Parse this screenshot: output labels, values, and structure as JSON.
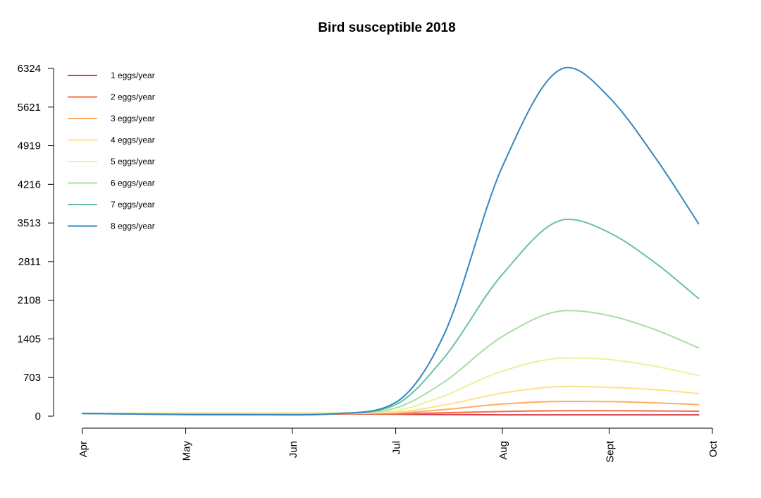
{
  "chart_data": {
    "type": "line",
    "title": "Bird susceptible 2018",
    "xlabel": "",
    "ylabel": "",
    "x_ticks": [
      "Apr",
      "May",
      "Jun",
      "Jul",
      "Aug",
      "Sept",
      "Oct"
    ],
    "y_ticks": [
      "0",
      "703",
      "1405",
      "2108",
      "2811",
      "3513",
      "4216",
      "4919",
      "5621",
      "6324"
    ],
    "xlim": [
      "2018-04-01",
      "2018-10-01"
    ],
    "ylim": [
      0,
      6324
    ],
    "grid": false,
    "legend_position": "top-left",
    "x": [
      "2018-04-01",
      "2018-05-01",
      "2018-06-01",
      "2018-06-15",
      "2018-07-01",
      "2018-07-15",
      "2018-08-01",
      "2018-08-20",
      "2018-09-01",
      "2018-09-15",
      "2018-09-27"
    ],
    "series": [
      {
        "name": "1 eggs/year",
        "color": "#d53e4f",
        "values": [
          50,
          45,
          40,
          40,
          35,
          30,
          25,
          25,
          25,
          25,
          25
        ]
      },
      {
        "name": "2 eggs/year",
        "color": "#f46d43",
        "values": [
          50,
          45,
          40,
          40,
          45,
          60,
          85,
          100,
          100,
          95,
          90
        ]
      },
      {
        "name": "3 eggs/year",
        "color": "#fdae61",
        "values": [
          50,
          55,
          55,
          55,
          60,
          120,
          220,
          270,
          265,
          240,
          210
        ]
      },
      {
        "name": "4 eggs/year",
        "color": "#fee08b",
        "values": [
          50,
          55,
          55,
          55,
          75,
          200,
          420,
          540,
          525,
          480,
          410
        ]
      },
      {
        "name": "5 eggs/year",
        "color": "#e6f598",
        "values": [
          50,
          50,
          50,
          50,
          100,
          370,
          820,
          1060,
          1030,
          900,
          740
        ]
      },
      {
        "name": "6 eggs/year",
        "color": "#abdda4",
        "values": [
          50,
          40,
          40,
          50,
          150,
          620,
          1450,
          1920,
          1830,
          1560,
          1240
        ]
      },
      {
        "name": "7 eggs/year",
        "color": "#66c2a5",
        "values": [
          50,
          30,
          25,
          50,
          210,
          1060,
          2580,
          3580,
          3340,
          2760,
          2140
        ]
      },
      {
        "name": "8 eggs/year",
        "color": "#3288bd",
        "values": [
          50,
          30,
          25,
          50,
          250,
          1480,
          4540,
          6340,
          5800,
          4650,
          3500
        ]
      }
    ]
  }
}
